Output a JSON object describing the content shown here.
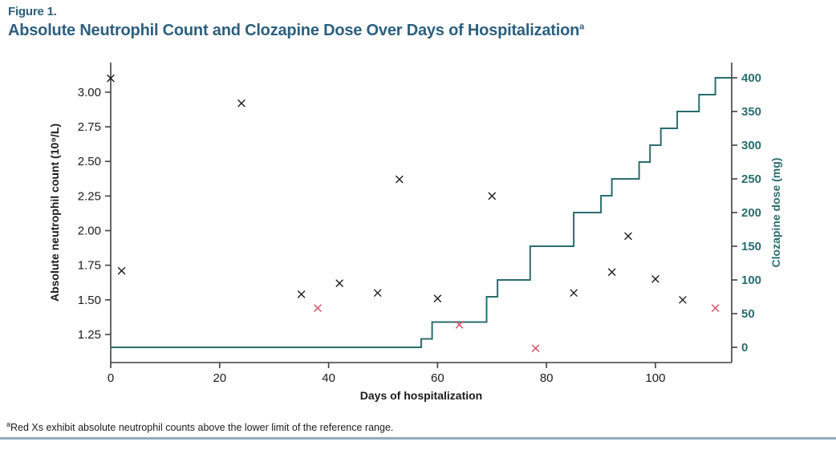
{
  "figure": {
    "label": "Figure 1.",
    "title": "Absolute Neutrophil Count and Clozapine Dose Over Days of Hospitalization",
    "title_superscript": "a"
  },
  "footnote": {
    "superscript": "a",
    "text": "Red Xs exhibit absolute neutrophil counts above the lower limit of the reference range."
  },
  "colors": {
    "title": "#2c5f7e",
    "axis": "#3f3f3f",
    "text": "#1a1a1a",
    "dose_teal": "#2a6d6e",
    "marker_black": "#1a1a1a",
    "marker_red": "#d34a60",
    "bottom_rule": "#93aabb"
  },
  "chart_data": {
    "type": "scatter+step",
    "title": "Absolute Neutrophil Count and Clozapine Dose Over Days of Hospitalization",
    "x_axis": {
      "label": "Days of hospitalization",
      "min": 0,
      "max": 114,
      "tick_values": [
        0,
        20,
        40,
        60,
        80,
        100
      ],
      "tick_labels": [
        "0",
        "20",
        "40",
        "60",
        "80",
        "100"
      ]
    },
    "y_left_axis": {
      "label": "Absolute neutrophil count (10⁹/L)",
      "min": 1.047,
      "max": 3.214,
      "tick_values": [
        1.25,
        1.5,
        1.75,
        2.0,
        2.25,
        2.5,
        2.75,
        3.0
      ],
      "tick_labels": [
        "1.25",
        "1.50",
        "1.75",
        "2.00",
        "2.25",
        "2.50",
        "2.75",
        "3.00"
      ]
    },
    "y_right_axis": {
      "label": "Clozapine dose (mg)",
      "min": -22.6,
      "max": 422.6,
      "tick_values": [
        0,
        50,
        100,
        150,
        200,
        250,
        300,
        350,
        400
      ],
      "tick_labels": [
        "0",
        "50",
        "100",
        "150",
        "200",
        "250",
        "300",
        "350",
        "400"
      ]
    },
    "legend": "none",
    "grid": false,
    "series": [
      {
        "name": "anc-black",
        "type": "scatter",
        "marker": "x",
        "color": "#1a1a1a",
        "axis": "left",
        "points": [
          [
            0,
            3.1
          ],
          [
            2,
            1.71
          ],
          [
            24,
            2.92
          ],
          [
            35,
            1.54
          ],
          [
            42,
            1.62
          ],
          [
            49,
            1.55
          ],
          [
            53,
            2.37
          ],
          [
            60,
            1.51
          ],
          [
            70,
            2.25
          ],
          [
            85,
            1.55
          ],
          [
            92,
            1.7
          ],
          [
            95,
            1.96
          ],
          [
            100,
            1.65
          ],
          [
            105,
            1.5
          ]
        ]
      },
      {
        "name": "anc-red",
        "type": "scatter",
        "marker": "x",
        "color": "#d34a60",
        "axis": "left",
        "points": [
          [
            38,
            1.44
          ],
          [
            64,
            1.32
          ],
          [
            78,
            1.15
          ],
          [
            111,
            1.44
          ]
        ]
      },
      {
        "name": "clozapine-dose",
        "type": "step",
        "color": "#2a6d6e",
        "axis": "right",
        "steps": [
          [
            0,
            0
          ],
          [
            57,
            12.5
          ],
          [
            59,
            37.5
          ],
          [
            69,
            75
          ],
          [
            71,
            100
          ],
          [
            77,
            150
          ],
          [
            85,
            200
          ],
          [
            90,
            225
          ],
          [
            92,
            250
          ],
          [
            97,
            275
          ],
          [
            99,
            300
          ],
          [
            101,
            325
          ],
          [
            104,
            350
          ],
          [
            108,
            375
          ],
          [
            111,
            400
          ]
        ],
        "end_day": 114
      }
    ]
  }
}
